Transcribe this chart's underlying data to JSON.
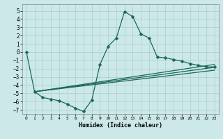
{
  "xlabel": "Humidex (Indice chaleur)",
  "bg_color": "#cce8e8",
  "grid_color": "#aacece",
  "line_color": "#1a6858",
  "xlim": [
    -0.5,
    23.5
  ],
  "ylim": [
    -7.5,
    5.8
  ],
  "yticks": [
    -7,
    -6,
    -5,
    -4,
    -3,
    -2,
    -1,
    0,
    1,
    2,
    3,
    4,
    5
  ],
  "xticks": [
    0,
    1,
    2,
    3,
    4,
    5,
    6,
    7,
    8,
    9,
    10,
    11,
    12,
    13,
    14,
    15,
    16,
    17,
    18,
    19,
    20,
    21,
    22,
    23
  ],
  "line1_x": [
    0,
    1,
    2,
    3,
    4,
    5,
    6,
    7,
    8,
    9,
    10,
    11,
    12,
    13,
    14,
    15,
    16,
    17,
    18,
    19,
    20,
    21,
    22,
    23
  ],
  "line1_y": [
    0.0,
    -4.8,
    -5.5,
    -5.7,
    -5.9,
    -6.3,
    -6.8,
    -7.2,
    -5.8,
    -1.5,
    0.7,
    1.7,
    4.9,
    4.3,
    2.2,
    1.7,
    -0.6,
    -0.7,
    -0.9,
    -1.1,
    -1.4,
    -1.6,
    -1.8,
    -1.8
  ],
  "diag_lines": [
    [
      [
        1,
        23
      ],
      [
        -4.8,
        -1.5
      ]
    ],
    [
      [
        1,
        23
      ],
      [
        -4.8,
        -1.85
      ]
    ],
    [
      [
        1,
        23
      ],
      [
        -4.8,
        -2.2
      ]
    ]
  ],
  "marker": "D",
  "markersize": 2.5,
  "linewidth": 0.9
}
